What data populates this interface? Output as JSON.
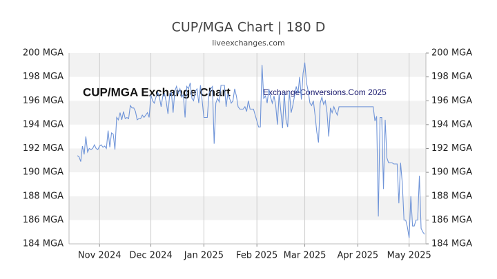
{
  "chart_data": {
    "type": "line",
    "title": "CUP/MGA Chart | 180 D",
    "subtitle": "liveexchanges.com",
    "annotations": [
      "CUP/MGA Exchange Chart",
      "ExchangeConversions.Com 2025"
    ],
    "categories": [
      null,
      null,
      null,
      null,
      null,
      null,
      null,
      null,
      null,
      null,
      null,
      null,
      null,
      "Nov 2024",
      null,
      null,
      null,
      null,
      null,
      null,
      null,
      null,
      null,
      null,
      null,
      null,
      null,
      null,
      null,
      null,
      null,
      null,
      null,
      null,
      null,
      null,
      null,
      null,
      null,
      null,
      null,
      null,
      null,
      "Dec 2024",
      null,
      null,
      null,
      null,
      null,
      null,
      null,
      null,
      null,
      null,
      null,
      null,
      null,
      null,
      null,
      null,
      null,
      null,
      null,
      null,
      null,
      null,
      null,
      null,
      null,
      null,
      null,
      null,
      null,
      null,
      "Jan 2025",
      null,
      null,
      null,
      null,
      null,
      null,
      null,
      null,
      null,
      null,
      null,
      null,
      null,
      null,
      null,
      null,
      null,
      null,
      null,
      null,
      null,
      null,
      null,
      null,
      null,
      null,
      null,
      null,
      null,
      null,
      "Feb 2025",
      null,
      null,
      null,
      null,
      null,
      null,
      null,
      null,
      null,
      null,
      null,
      null,
      null,
      null,
      null,
      null,
      null,
      null,
      null,
      null,
      null,
      null,
      null,
      null,
      null,
      null,
      null,
      "Mar 2025",
      null,
      null,
      null,
      null,
      null,
      null,
      null,
      null,
      null,
      null,
      null,
      null,
      null,
      null,
      null,
      null,
      null,
      null,
      null,
      null,
      null,
      null,
      null,
      null,
      null,
      null,
      null,
      null,
      null,
      null,
      "Apr 2025",
      null,
      null,
      null,
      null,
      null,
      null,
      null,
      null,
      null,
      null,
      null,
      null,
      null,
      null,
      null,
      null,
      null,
      null,
      null,
      null,
      null,
      null,
      null,
      null,
      null,
      null,
      null,
      null,
      null,
      "May 2025",
      null,
      null,
      null,
      null,
      null,
      null,
      null,
      null,
      null
    ],
    "series": [
      {
        "name": "CUP/MGA",
        "color": "#6f94d8",
        "values": [
          191.4,
          191.3,
          190.9,
          192.2,
          191.5,
          193.0,
          191.7,
          192.0,
          191.9,
          192.0,
          192.3,
          192.0,
          191.9,
          192.2,
          192.3,
          192.1,
          192.2,
          192.0,
          193.5,
          192.1,
          193.3,
          193.2,
          191.9,
          194.6,
          194.4,
          195.0,
          194.4,
          195.1,
          194.5,
          194.6,
          194.5,
          195.6,
          195.4,
          195.4,
          195.1,
          194.4,
          194.5,
          194.5,
          194.8,
          194.6,
          194.8,
          195.0,
          194.6,
          196.5,
          196.0,
          195.8,
          196.3,
          196.7,
          196.3,
          195.5,
          196.4,
          196.6,
          195.9,
          194.9,
          196.5,
          196.7,
          195.0,
          196.8,
          197.2,
          196.6,
          197.0,
          196.3,
          196.5,
          194.6,
          197.2,
          197.0,
          197.5,
          196.2,
          196.0,
          196.8,
          197.0,
          195.8,
          197.3,
          196.0,
          194.6,
          194.6,
          194.6,
          196.6,
          197.0,
          197.2,
          192.4,
          195.8,
          196.2,
          195.9,
          197.3,
          197.3,
          197.3,
          195.5,
          196.6,
          196.2,
          195.8,
          196.0,
          197.0,
          196.4,
          195.5,
          195.3,
          195.3,
          195.3,
          195.5,
          195.1,
          196.0,
          195.3,
          195.3,
          195.3,
          194.8,
          194.3,
          193.8,
          193.8,
          199.0,
          196.2,
          196.4,
          195.8,
          197.0,
          196.3,
          195.8,
          196.4,
          195.6,
          194.0,
          196.6,
          195.1,
          193.7,
          196.7,
          194.4,
          193.8,
          196.8,
          195.0,
          195.6,
          196.4,
          197.2,
          196.6,
          198.0,
          196.1,
          198.3,
          199.2,
          197.5,
          196.8,
          195.8,
          195.6,
          196.0,
          194.8,
          193.4,
          192.5,
          195.8,
          196.3,
          195.7,
          196.0,
          195.0,
          193.0,
          195.4,
          195.0,
          195.5,
          195.1,
          194.8,
          195.5,
          195.5,
          195.5,
          195.5,
          195.5,
          195.5,
          195.5,
          195.5,
          195.5,
          195.5,
          195.5,
          195.5,
          195.5,
          195.5,
          195.5,
          195.5,
          195.5,
          195.5,
          195.5,
          195.5,
          195.5,
          194.3,
          194.7,
          186.3,
          194.6,
          194.6,
          188.6,
          194.4,
          191.2,
          190.8,
          190.8,
          190.8,
          190.7,
          190.7,
          190.7,
          187.4,
          190.8,
          189.1,
          186.0,
          186.0,
          185.4,
          184.5,
          188.0,
          185.5,
          185.5,
          186.0,
          186.0,
          189.7,
          185.3,
          185.0,
          184.8
        ]
      }
    ],
    "ylim": [
      184,
      200
    ],
    "yticks": [
      {
        "value": 184,
        "label": "184 MGA"
      },
      {
        "value": 186,
        "label": "186 MGA"
      },
      {
        "value": 188,
        "label": "188 MGA"
      },
      {
        "value": 190,
        "label": "190 MGA"
      },
      {
        "value": 192,
        "label": "192 MGA"
      },
      {
        "value": 194,
        "label": "194 MGA"
      },
      {
        "value": 196,
        "label": "196 MGA"
      },
      {
        "value": 198,
        "label": "198 MGA"
      },
      {
        "value": 200,
        "label": "200 MGA"
      }
    ],
    "grid": true
  }
}
